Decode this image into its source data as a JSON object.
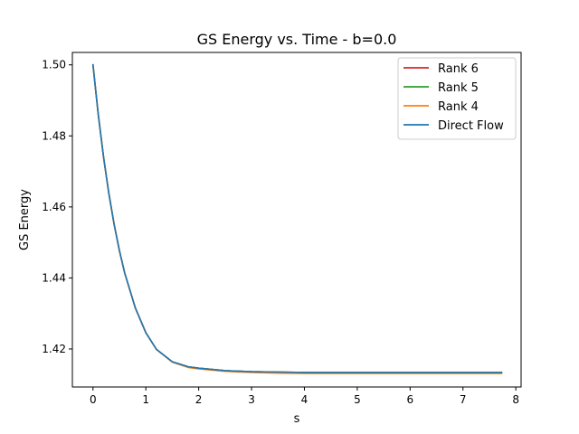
{
  "chart_data": {
    "type": "line",
    "title": "GS Energy vs. Time - b=0.0",
    "xlabel": "s",
    "ylabel": "GS Energy",
    "xlim": [
      -0.39,
      8.1
    ],
    "ylim": [
      1.4093,
      1.5035
    ],
    "xticks": [
      "0",
      "1",
      "2",
      "3",
      "4",
      "5",
      "6",
      "7",
      "8"
    ],
    "yticks": [
      "1.42",
      "1.44",
      "1.46",
      "1.48",
      "1.50"
    ],
    "grid": false,
    "legend_position": "top-right",
    "series": [
      {
        "name": "Rank 6",
        "color": "#d62728",
        "x": [
          0,
          0.1,
          0.2,
          0.3,
          0.4,
          0.5,
          0.6,
          0.8,
          1.0,
          1.2,
          1.5,
          1.8,
          2.0,
          2.5,
          3.0,
          3.5,
          4.0,
          4.5,
          5.0,
          5.5,
          6.0,
          6.5,
          7.0,
          7.5,
          7.73
        ],
        "y": [
          1.5,
          1.486,
          1.474,
          1.4638,
          1.4551,
          1.4477,
          1.4414,
          1.4316,
          1.4246,
          1.4199,
          1.4164,
          1.415,
          1.4146,
          1.4139,
          1.4136,
          1.4135,
          1.4134,
          1.4134,
          1.4134,
          1.4134,
          1.4134,
          1.4134,
          1.4134,
          1.4134,
          1.4134
        ]
      },
      {
        "name": "Rank 5",
        "color": "#2ca02c",
        "x": [
          0,
          0.1,
          0.2,
          0.3,
          0.4,
          0.5,
          0.6,
          0.8,
          1.0,
          1.2,
          1.5,
          1.8,
          2.0,
          2.5,
          3.0,
          3.5,
          4.0,
          4.5,
          5.0,
          5.5,
          6.0,
          6.5,
          7.0,
          7.5,
          7.73
        ],
        "y": [
          1.5,
          1.486,
          1.474,
          1.4638,
          1.4551,
          1.4477,
          1.4414,
          1.4316,
          1.4246,
          1.4199,
          1.4164,
          1.415,
          1.4146,
          1.4139,
          1.4136,
          1.4135,
          1.4134,
          1.4134,
          1.4134,
          1.4134,
          1.4134,
          1.4134,
          1.4134,
          1.4134,
          1.4134
        ]
      },
      {
        "name": "Rank 4",
        "color": "#ff7f0e",
        "x": [
          0,
          0.1,
          0.2,
          0.3,
          0.4,
          0.5,
          0.6,
          0.8,
          1.0,
          1.2,
          1.5,
          1.8,
          2.0,
          2.5,
          3.0,
          3.5,
          4.0,
          4.5,
          5.0,
          5.5,
          6.0,
          6.5,
          7.0,
          7.5,
          7.73
        ],
        "y": [
          1.5,
          1.486,
          1.474,
          1.4638,
          1.4551,
          1.4477,
          1.4414,
          1.4316,
          1.4246,
          1.4199,
          1.4163,
          1.4148,
          1.4144,
          1.4137,
          1.4134,
          1.4132,
          1.4131,
          1.4131,
          1.4131,
          1.4131,
          1.4131,
          1.4131,
          1.4131,
          1.4131,
          1.4131
        ]
      },
      {
        "name": "Direct Flow",
        "color": "#1f77b4",
        "x": [
          0,
          0.1,
          0.2,
          0.3,
          0.4,
          0.5,
          0.6,
          0.8,
          1.0,
          1.2,
          1.5,
          1.8,
          2.0,
          2.5,
          3.0,
          3.5,
          4.0,
          4.5,
          5.0,
          5.5,
          6.0,
          6.5,
          7.0,
          7.5,
          7.73
        ],
        "y": [
          1.5,
          1.486,
          1.474,
          1.4638,
          1.4551,
          1.4477,
          1.4414,
          1.4316,
          1.4246,
          1.4199,
          1.4164,
          1.415,
          1.4146,
          1.4139,
          1.4136,
          1.4135,
          1.4134,
          1.4134,
          1.4134,
          1.4134,
          1.4134,
          1.4134,
          1.4134,
          1.4134,
          1.4134
        ]
      }
    ]
  }
}
